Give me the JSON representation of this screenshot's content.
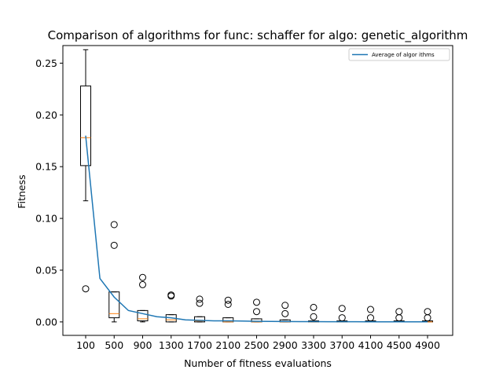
{
  "chart_data": {
    "type": "box",
    "title": "Comparison of algorithms for func: schaffer for algo: genetic_algorithm",
    "xlabel": "Number of fitness evaluations",
    "ylabel": "Fitness",
    "ylim": [
      -0.013,
      0.267
    ],
    "yticks": [
      0.0,
      0.05,
      0.1,
      0.15,
      0.2,
      0.25
    ],
    "ytick_labels": [
      "0.00",
      "0.05",
      "0.10",
      "0.15",
      "0.20",
      "0.25"
    ],
    "categories": [
      "100",
      "500",
      "900",
      "1300",
      "1700",
      "2100",
      "2500",
      "2900",
      "3300",
      "3700",
      "4100",
      "4500",
      "4900"
    ],
    "boxes": [
      {
        "category": "100",
        "whislo": 0.117,
        "q1": 0.151,
        "med": 0.178,
        "q3": 0.228,
        "whishi": 0.263,
        "fliers": [
          0.032
        ]
      },
      {
        "category": "500",
        "whislo": 0.0,
        "q1": 0.004,
        "med": 0.008,
        "q3": 0.029,
        "whishi": 0.029,
        "fliers": [
          0.074,
          0.094
        ]
      },
      {
        "category": "900",
        "whislo": 0.0,
        "q1": 0.001,
        "med": 0.003,
        "q3": 0.011,
        "whishi": 0.011,
        "fliers": [
          0.036,
          0.043
        ]
      },
      {
        "category": "1300",
        "whislo": 0.0,
        "q1": 0.0,
        "med": 0.002,
        "q3": 0.007,
        "whishi": 0.007,
        "fliers": [
          0.025,
          0.026
        ]
      },
      {
        "category": "1700",
        "whislo": 0.0,
        "q1": 0.0,
        "med": 0.001,
        "q3": 0.005,
        "whishi": 0.005,
        "fliers": [
          0.018,
          0.022
        ]
      },
      {
        "category": "2100",
        "whislo": 0.0,
        "q1": 0.0,
        "med": 0.0,
        "q3": 0.004,
        "whishi": 0.004,
        "fliers": [
          0.017,
          0.021
        ]
      },
      {
        "category": "2500",
        "whislo": 0.0,
        "q1": 0.0,
        "med": 0.0,
        "q3": 0.003,
        "whishi": 0.003,
        "fliers": [
          0.01,
          0.019
        ]
      },
      {
        "category": "2900",
        "whislo": 0.0,
        "q1": 0.0,
        "med": 0.0,
        "q3": 0.002,
        "whishi": 0.002,
        "fliers": [
          0.008,
          0.016
        ]
      },
      {
        "category": "3300",
        "whislo": 0.0,
        "q1": 0.0,
        "med": 0.0,
        "q3": 0.001,
        "whishi": 0.001,
        "fliers": [
          0.005,
          0.014
        ]
      },
      {
        "category": "3700",
        "whislo": 0.0,
        "q1": 0.0,
        "med": 0.0,
        "q3": 0.001,
        "whishi": 0.001,
        "fliers": [
          0.004,
          0.013
        ]
      },
      {
        "category": "4100",
        "whislo": 0.0,
        "q1": 0.0,
        "med": 0.0,
        "q3": 0.001,
        "whishi": 0.001,
        "fliers": [
          0.004,
          0.012
        ]
      },
      {
        "category": "4500",
        "whislo": 0.0,
        "q1": 0.0,
        "med": 0.0,
        "q3": 0.001,
        "whishi": 0.001,
        "fliers": [
          0.004,
          0.01
        ]
      },
      {
        "category": "4900",
        "whislo": 0.0,
        "q1": 0.0,
        "med": 0.0,
        "q3": 0.001,
        "whishi": 0.001,
        "fliers": [
          0.004,
          0.01
        ]
      }
    ],
    "series": [
      {
        "name": "Average of algor ithms",
        "type": "line",
        "color": "#1f77b4",
        "x": [
          100,
          300,
          500,
          700,
          900,
          1100,
          1300,
          1500,
          1700,
          1900,
          2100,
          2300,
          2500,
          2700,
          2900,
          3100,
          3300,
          3500,
          3700,
          3900,
          4100,
          4300,
          4500,
          4700,
          4900
        ],
        "y": [
          0.18,
          0.042,
          0.024,
          0.011,
          0.008,
          0.005,
          0.004,
          0.002,
          0.0015,
          0.001,
          0.001,
          0.0008,
          0.0006,
          0.0005,
          0.0004,
          0.0003,
          0.0003,
          0.0002,
          0.0002,
          0.0002,
          0.0001,
          0.0001,
          0.0001,
          0.0001,
          0.0001
        ]
      }
    ],
    "box_color": "#000000",
    "median_color": "#ff7f0e",
    "legend_position": "upper right",
    "grid": false
  }
}
